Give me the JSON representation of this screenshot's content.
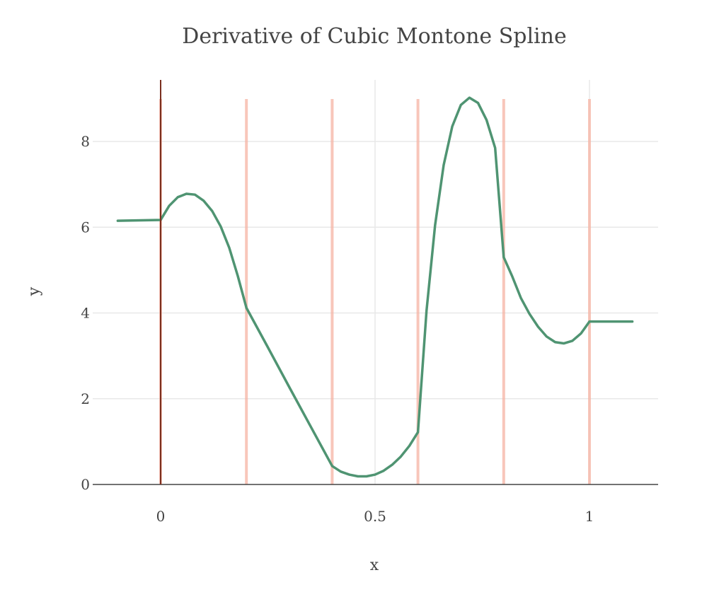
{
  "chart_data": {
    "type": "line",
    "title": "Derivative of Cubic Montone Spline",
    "xlabel": "x",
    "ylabel": "y",
    "xlim": [
      -0.1,
      1.1
    ],
    "ylim": [
      0,
      9
    ],
    "x_ticks": [
      {
        "value": 0,
        "label": "0"
      },
      {
        "value": 0.5,
        "label": "0.5"
      },
      {
        "value": 1,
        "label": "1"
      }
    ],
    "y_ticks": [
      {
        "value": 0,
        "label": "0"
      },
      {
        "value": 2,
        "label": "2"
      },
      {
        "value": 4,
        "label": "4"
      },
      {
        "value": 6,
        "label": "6"
      },
      {
        "value": 8,
        "label": "8"
      }
    ],
    "grid": true,
    "knots": [
      0,
      0.2,
      0.4,
      0.6,
      0.8,
      1.0
    ],
    "series": [
      {
        "color": "#4f9472",
        "points": [
          [
            -0.1,
            6.15
          ],
          [
            0,
            6.17
          ],
          [
            0.02,
            6.5
          ],
          [
            0.04,
            6.7
          ],
          [
            0.06,
            6.78
          ],
          [
            0.08,
            6.76
          ],
          [
            0.1,
            6.62
          ],
          [
            0.12,
            6.38
          ],
          [
            0.14,
            6.02
          ],
          [
            0.16,
            5.52
          ],
          [
            0.18,
            4.86
          ],
          [
            0.2,
            4.12
          ],
          [
            0.25,
            3.2
          ],
          [
            0.3,
            2.27
          ],
          [
            0.35,
            1.35
          ],
          [
            0.4,
            0.43
          ],
          [
            0.42,
            0.3
          ],
          [
            0.44,
            0.23
          ],
          [
            0.46,
            0.19
          ],
          [
            0.48,
            0.19
          ],
          [
            0.5,
            0.23
          ],
          [
            0.52,
            0.32
          ],
          [
            0.54,
            0.46
          ],
          [
            0.56,
            0.65
          ],
          [
            0.58,
            0.9
          ],
          [
            0.6,
            1.22
          ],
          [
            0.62,
            4.05
          ],
          [
            0.64,
            6.05
          ],
          [
            0.66,
            7.45
          ],
          [
            0.68,
            8.35
          ],
          [
            0.7,
            8.85
          ],
          [
            0.72,
            9.02
          ],
          [
            0.74,
            8.9
          ],
          [
            0.76,
            8.5
          ],
          [
            0.78,
            7.85
          ],
          [
            0.8,
            5.3
          ],
          [
            0.82,
            4.85
          ],
          [
            0.84,
            4.35
          ],
          [
            0.86,
            3.98
          ],
          [
            0.88,
            3.68
          ],
          [
            0.9,
            3.45
          ],
          [
            0.92,
            3.32
          ],
          [
            0.94,
            3.29
          ],
          [
            0.96,
            3.35
          ],
          [
            0.98,
            3.52
          ],
          [
            1.0,
            3.8
          ],
          [
            1.1,
            3.8
          ]
        ]
      }
    ],
    "colors": {
      "knot_line": "#f5b3a3",
      "zero_line": "#7a2f1f",
      "grid": "#e8e8e8",
      "axis": "#444444"
    }
  }
}
